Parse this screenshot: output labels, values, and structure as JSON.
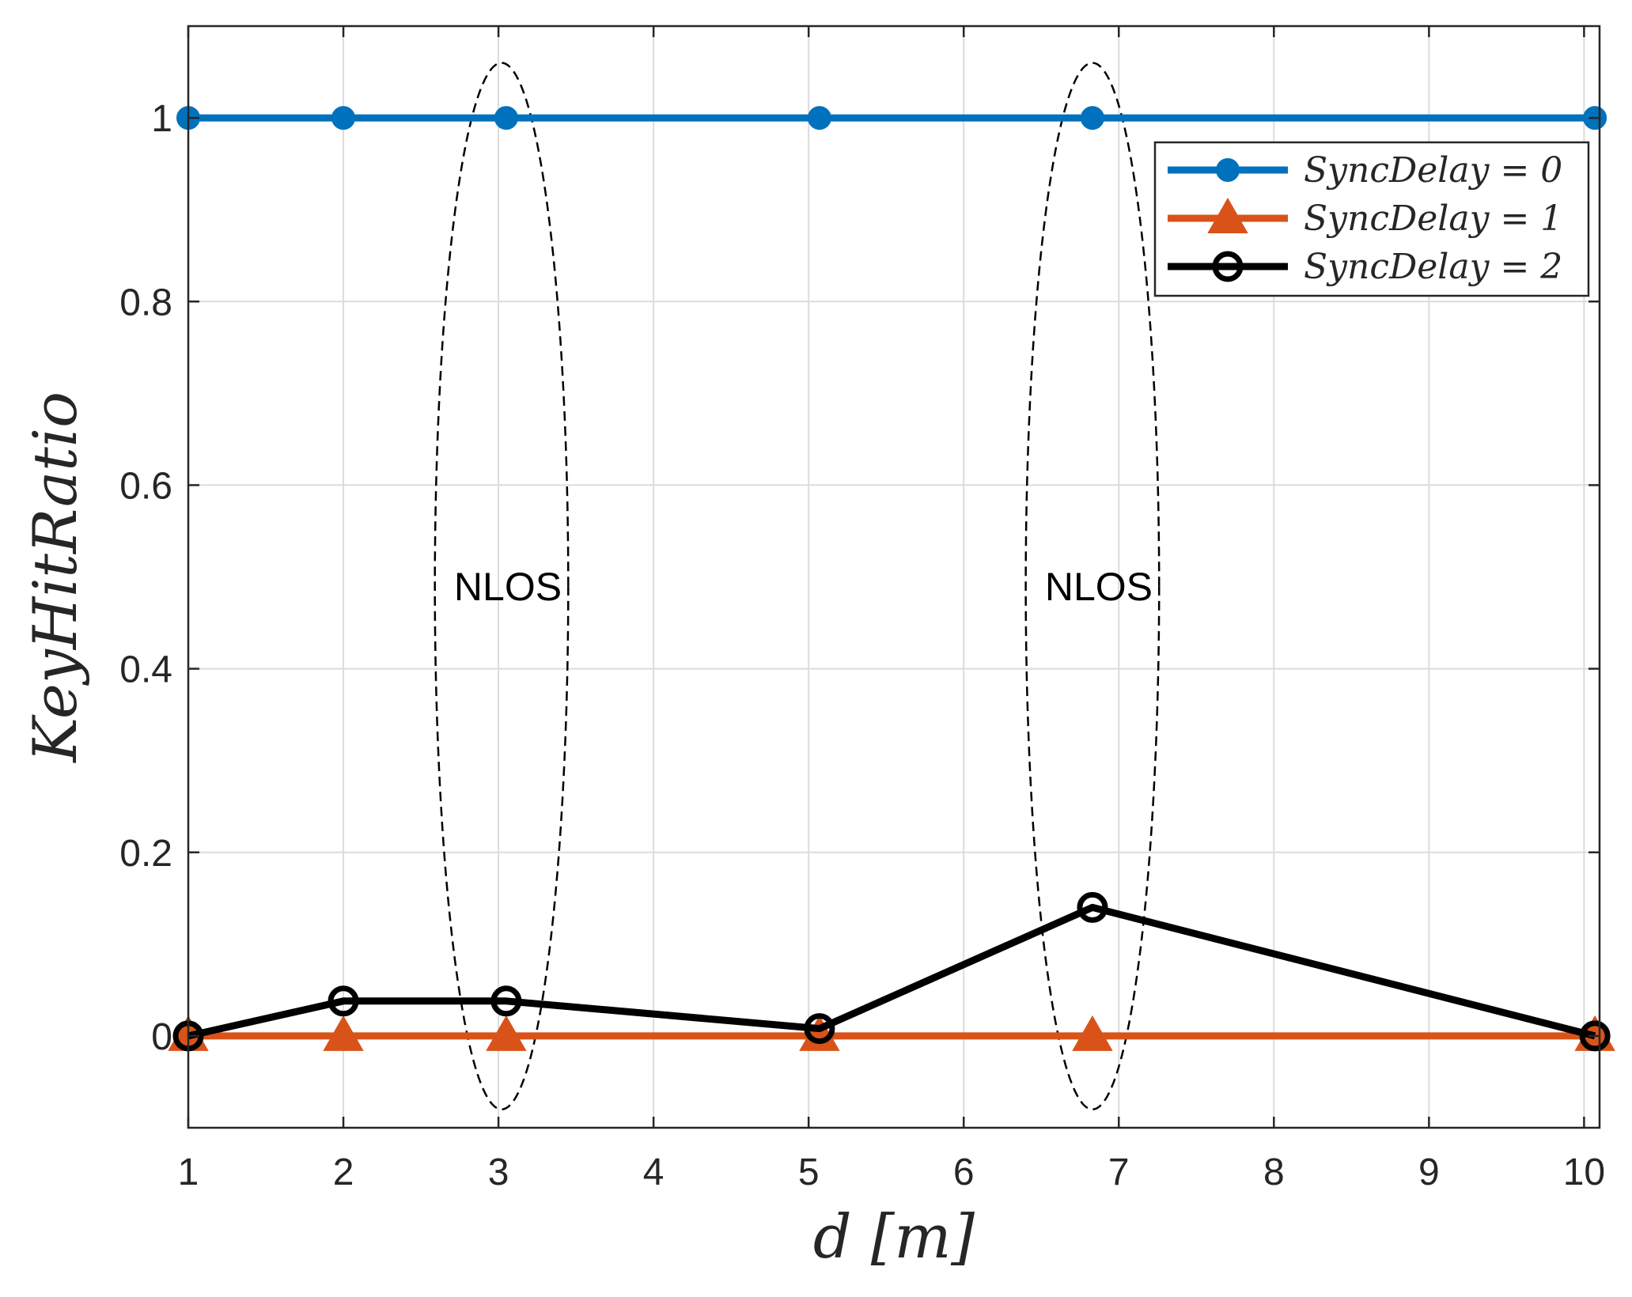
{
  "chart_data": {
    "type": "line",
    "title": "",
    "xlabel": "d [m]",
    "ylabel": "KeyHitRatio",
    "xlim": [
      1,
      10.1
    ],
    "ylim": [
      -0.1,
      1.1
    ],
    "xticks": [
      "1",
      "2",
      "3",
      "4",
      "5",
      "6",
      "7",
      "8",
      "9",
      "10"
    ],
    "yticks": [
      "0",
      "0.2",
      "0.4",
      "0.6",
      "0.8",
      "1"
    ],
    "grid": true,
    "legend_position": "top-right",
    "x": [
      1,
      2,
      3.05,
      5.07,
      6.83,
      10.07
    ],
    "series": [
      {
        "name": "SyncDelay = 0",
        "values": [
          1,
          1,
          1,
          1,
          1,
          1
        ],
        "color": "#0072BD",
        "marker": "filled-circle"
      },
      {
        "name": "SyncDelay = 1",
        "values": [
          0,
          0,
          0,
          0,
          0,
          0
        ],
        "color": "#D95319",
        "marker": "filled-triangle"
      },
      {
        "name": "SyncDelay = 2",
        "values": [
          0,
          0.038,
          0.038,
          0.008,
          0.14,
          0
        ],
        "color": "#000000",
        "marker": "open-circle"
      }
    ],
    "annotations": [
      {
        "text": "NLOS",
        "x": 3.02,
        "y": 0.49
      },
      {
        "text": "NLOS",
        "x": 6.83,
        "y": 0.49
      }
    ],
    "ellipses": [
      {
        "cx": 3.02,
        "cy": 0.49,
        "rx": 0.43,
        "ry": 0.57
      },
      {
        "cx": 6.83,
        "cy": 0.49,
        "rx": 0.43,
        "ry": 0.57
      }
    ]
  }
}
